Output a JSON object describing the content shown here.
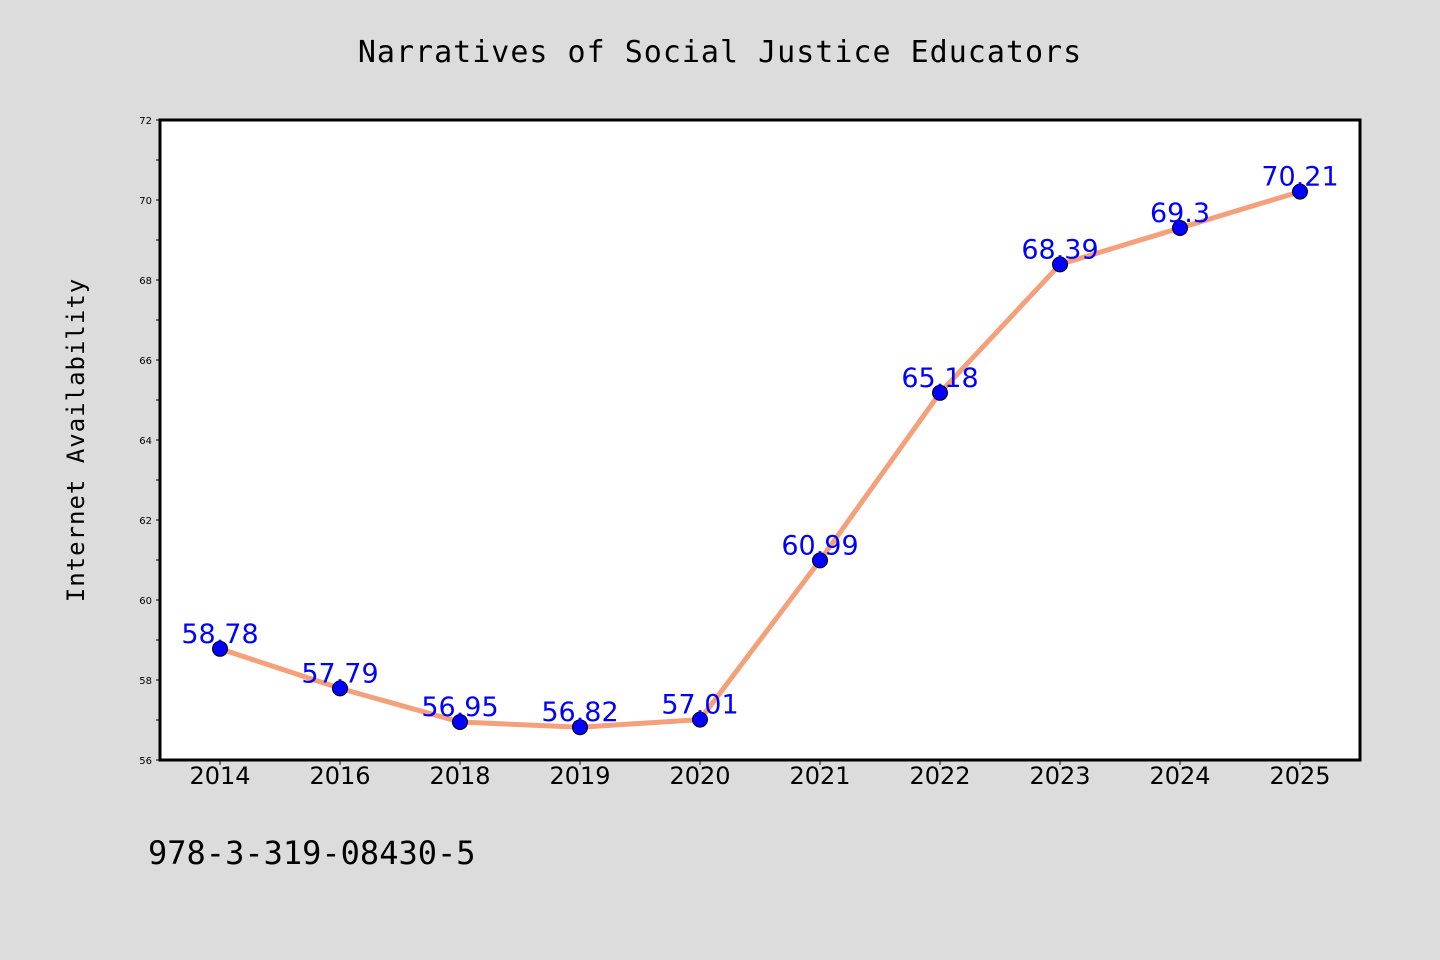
{
  "chart_data": {
    "type": "line",
    "title": "Narratives of Social Justice Educators",
    "xlabel": "",
    "ylabel": "Internet Availability",
    "categories": [
      "2014",
      "2016",
      "2018",
      "2019",
      "2020",
      "2021",
      "2022",
      "2023",
      "2024",
      "2025"
    ],
    "series": [
      {
        "values": [
          58.78,
          57.79,
          56.95,
          56.82,
          57.01,
          60.99,
          65.18,
          68.39,
          69.3,
          70.21
        ],
        "data_labels": [
          "58.78",
          "57.79",
          "56.95",
          "56.82",
          "57.01",
          "60.99",
          "65.18",
          "68.39",
          "69.3",
          "70.21"
        ]
      }
    ],
    "ylim": [
      56,
      72
    ],
    "yticks": [
      "56",
      "58",
      "60",
      "62",
      "64",
      "66",
      "68",
      "70",
      "72"
    ],
    "grid": false,
    "legend": "none",
    "colors": {
      "line": "#f4a07a",
      "marker": "#0000ff",
      "data_label": "#0000ff",
      "plot_background": "#ffffff",
      "page_background": "#dcdcdc"
    }
  },
  "footnote": "978-3-319-08430-5"
}
